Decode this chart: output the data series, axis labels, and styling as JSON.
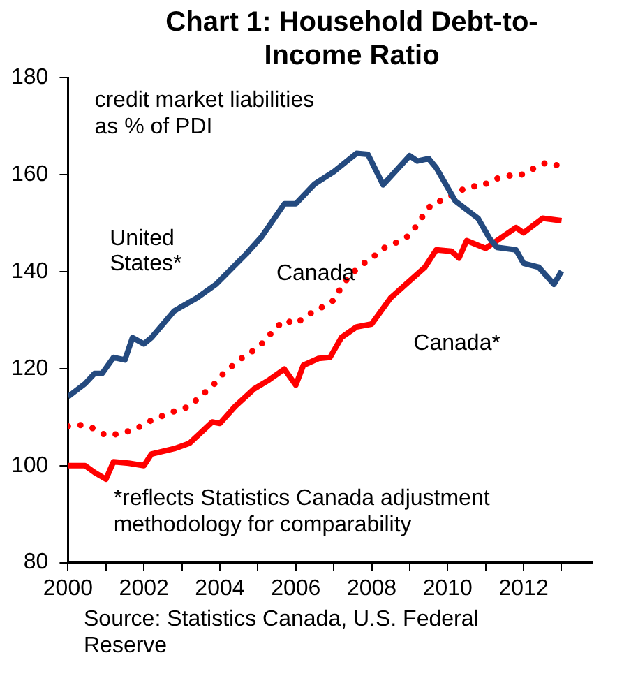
{
  "chart_data": {
    "type": "line",
    "title": "Chart 1: Household Debt-to-Income Ratio",
    "annotations": [
      "credit market liabilities as % of PDI",
      "*reflects Statistics Canada adjustment methodology for comparability",
      "Source: Statistics Canada, U.S. Federal Reserve"
    ],
    "xlim": [
      2000,
      2013.8
    ],
    "xticks": [
      2000,
      {
        "value": 2001,
        "label": null
      },
      2002,
      {
        "value": 2003,
        "label": null
      },
      2004,
      {
        "value": 2005,
        "label": null
      },
      2006,
      {
        "value": 2007,
        "label": null
      },
      2008,
      {
        "value": 2009,
        "label": null
      },
      2010,
      {
        "value": 2011,
        "label": null
      },
      2012,
      {
        "value": 2013,
        "label": null
      }
    ],
    "ylim": [
      80,
      180
    ],
    "yticks": [
      80,
      100,
      120,
      140,
      160,
      180
    ],
    "grid": false,
    "legend": false,
    "marker": "none",
    "series": [
      {
        "name": "United States*",
        "color": "#244a7f",
        "line_style": "solid",
        "x": [
          2000,
          2000.45,
          2000.7,
          2000.9,
          2001.2,
          2001.5,
          2001.7,
          2002.0,
          2002.2,
          2002.8,
          2003.4,
          2003.9,
          2004.7,
          2005.1,
          2005.7,
          2006.0,
          2006.5,
          2007.0,
          2007.6,
          2007.9,
          2008.3,
          2009.0,
          2009.2,
          2009.5,
          2009.7,
          2010.2,
          2010.8,
          2011.1,
          2011.3,
          2011.8,
          2012.0,
          2012.4,
          2012.8,
          2013.0
        ],
        "values": [
          114.2,
          116.9,
          119,
          119,
          122.3,
          121.8,
          126.4,
          125.1,
          126.4,
          131.9,
          134.6,
          137.4,
          143.7,
          147.2,
          154.0,
          154.0,
          158.1,
          160.6,
          164.4,
          164.2,
          157.9,
          163.9,
          162.8,
          163.3,
          161.4,
          154.6,
          151.0,
          146.9,
          145.0,
          144.5,
          141.7,
          140.9,
          137.4,
          140.1
        ]
      },
      {
        "name": "Canada",
        "color": "#ff0000",
        "line_style": "dotted",
        "x": [
          2000,
          2000.4,
          2000.7,
          2001.0,
          2001.4,
          2001.8,
          2002.1,
          2002.5,
          2002.8,
          2003.2,
          2003.5,
          2003.8,
          2004.0,
          2004.3,
          2004.6,
          2004.9,
          2005.2,
          2005.4,
          2005.7,
          2006.0,
          2006.3,
          2006.7,
          2007.0,
          2007.2,
          2007.4,
          2007.7,
          2008.0,
          2008.3,
          2008.6,
          2009.0,
          2009.2,
          2009.4,
          2009.6,
          2009.9,
          2010.3,
          2010.6,
          2010.9,
          2011.2,
          2011.6,
          2011.9,
          2012.3,
          2012.6,
          2013.0
        ],
        "values": [
          108.1,
          108.4,
          107.6,
          106.2,
          106.6,
          107.6,
          109.0,
          110.3,
          111.2,
          112.2,
          114.4,
          116.3,
          118.3,
          120.4,
          122.3,
          123.8,
          125.8,
          127.8,
          130.0,
          129.2,
          131.0,
          132.7,
          134.1,
          136.8,
          139.0,
          141.2,
          142.8,
          144.8,
          145.8,
          147.5,
          149.7,
          152.1,
          154.1,
          154.8,
          156.6,
          157.6,
          157.6,
          159.0,
          159.8,
          159.8,
          161.4,
          162.5,
          161.7
        ]
      },
      {
        "name": "Canada*",
        "color": "#ff0000",
        "line_style": "solid",
        "x": [
          2000,
          2000.45,
          2000.7,
          2001.0,
          2001.2,
          2001.6,
          2002.0,
          2002.2,
          2002.8,
          2003.2,
          2003.5,
          2003.8,
          2004.0,
          2004.4,
          2004.9,
          2005.3,
          2005.7,
          2006.0,
          2006.2,
          2006.6,
          2006.9,
          2007.2,
          2007.6,
          2008.0,
          2008.5,
          2008.9,
          2009.4,
          2009.7,
          2010.1,
          2010.3,
          2010.5,
          2011.0,
          2011.3,
          2011.8,
          2012.0,
          2012.5,
          2013.0
        ],
        "values": [
          100.0,
          100.0,
          98.6,
          97.2,
          100.8,
          100.5,
          100.0,
          102.4,
          103.5,
          104.6,
          106.8,
          109.0,
          108.7,
          112.2,
          115.8,
          117.7,
          119.9,
          116.6,
          120.7,
          122.1,
          122.3,
          126.4,
          128.6,
          129.2,
          134.6,
          137.4,
          140.9,
          144.5,
          144.2,
          142.8,
          146.4,
          144.8,
          146.4,
          149.1,
          148.0,
          151.0,
          150.5
        ]
      }
    ]
  }
}
